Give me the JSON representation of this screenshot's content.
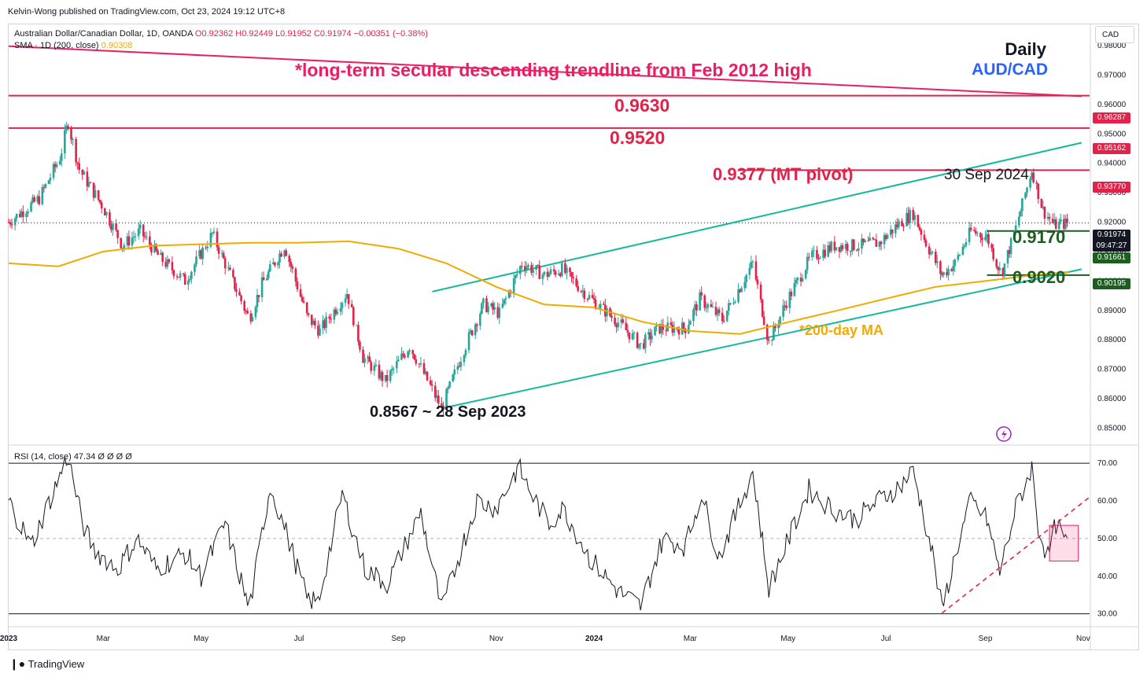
{
  "header": {
    "publisher": "Kelvin-Wong published on TradingView.com, Oct 23, 2024 19:12 UTC+8",
    "symbol": "Australian Dollar/Canadian Dollar, 1D, OANDA",
    "ohlc": "O0.92362 H0.92449 L0.91952 C0.91974 −0.00351 (−0.38%)",
    "sma_label": "SMA · 1D (200, close)",
    "sma_value": "0.90308",
    "rsi_label": "RSI (14, close)",
    "rsi_value": "47.34 Ø Ø Ø Ø"
  },
  "currency_button": "CAD",
  "titles": {
    "daily": "Daily",
    "pair": "AUD/CAD"
  },
  "annotations": {
    "trendline": "*long-term secular descending trendline from Feb 2012 high",
    "level_0963": "0.9630",
    "level_0952": "0.9520",
    "pivot": "0.9377 (MT pivot)",
    "sep_high": "30 Sep 2024",
    "level_0917": "0.9170",
    "level_0902": "0.9020",
    "low": "0.8567 ~ 28 Sep 2023",
    "ma": "*200-day MA"
  },
  "price_tags": {
    "t1": "0.96287",
    "t2": "0.95162",
    "t3": "0.93770",
    "last": "0.91974",
    "countdown": "09:47:27",
    "t5": "0.91661",
    "t6": "0.90195"
  },
  "colors": {
    "up": "#26a69a",
    "down": "#e0234a",
    "trendline": "#e91e63",
    "channel": "#14b8a0",
    "ma": "#f2a900",
    "support": "#1b5e20",
    "resistance": "#e0234a",
    "pair_title": "#2962ff"
  },
  "footer": {
    "brand": "TradingView"
  },
  "chart_data": [
    {
      "type": "candlestick",
      "title": "Australian Dollar/Canadian Dollar, 1D, OANDA",
      "x_range": [
        "2023-01-01",
        "2024-11-05"
      ],
      "ylim": [
        0.8445,
        0.9875
      ],
      "y_ticks": [
        "0.85000",
        "0.86000",
        "0.87000",
        "0.88000",
        "0.89000",
        "0.90000",
        "0.91000",
        "0.92000",
        "0.93000",
        "0.94000",
        "0.95000",
        "0.96000",
        "0.97000",
        "0.98000"
      ],
      "x_ticks": [
        {
          "label": "2023",
          "date": "2023-01-01"
        },
        {
          "label": "Mar",
          "date": "2023-03-01"
        },
        {
          "label": "May",
          "date": "2023-05-01"
        },
        {
          "label": "Jul",
          "date": "2023-07-01"
        },
        {
          "label": "Sep",
          "date": "2023-09-01"
        },
        {
          "label": "Nov",
          "date": "2023-11-01"
        },
        {
          "label": "2024",
          "date": "2024-01-01"
        },
        {
          "label": "Mar",
          "date": "2024-03-01"
        },
        {
          "label": "May",
          "date": "2024-05-01"
        },
        {
          "label": "Jul",
          "date": "2024-07-01"
        },
        {
          "label": "Sep",
          "date": "2024-09-01"
        },
        {
          "label": "Nov",
          "date": "2024-11-01"
        }
      ],
      "close_path": [
        [
          "2023-01-01",
          0.92
        ],
        [
          "2023-01-20",
          0.928
        ],
        [
          "2023-02-02",
          0.942
        ],
        [
          "2023-02-07",
          0.954
        ],
        [
          "2023-02-14",
          0.938
        ],
        [
          "2023-03-01",
          0.925
        ],
        [
          "2023-03-13",
          0.912
        ],
        [
          "2023-03-24",
          0.917
        ],
        [
          "2023-04-05",
          0.908
        ],
        [
          "2023-04-21",
          0.9
        ],
        [
          "2023-05-08",
          0.916
        ],
        [
          "2023-05-31",
          0.887
        ],
        [
          "2023-06-08",
          0.899
        ],
        [
          "2023-06-22",
          0.912
        ],
        [
          "2023-07-06",
          0.888
        ],
        [
          "2023-07-14",
          0.883
        ],
        [
          "2023-07-31",
          0.896
        ],
        [
          "2023-08-10",
          0.874
        ],
        [
          "2023-08-24",
          0.866
        ],
        [
          "2023-09-08",
          0.878
        ],
        [
          "2023-09-28",
          0.8567
        ],
        [
          "2023-10-12",
          0.877
        ],
        [
          "2023-10-24",
          0.892
        ],
        [
          "2023-11-03",
          0.889
        ],
        [
          "2023-11-17",
          0.906
        ],
        [
          "2023-12-01",
          0.902
        ],
        [
          "2023-12-12",
          0.904
        ],
        [
          "2023-12-28",
          0.895
        ],
        [
          "2024-01-18",
          0.885
        ],
        [
          "2024-01-30",
          0.878
        ],
        [
          "2024-02-10",
          0.884
        ],
        [
          "2024-02-27",
          0.884
        ],
        [
          "2024-03-07",
          0.894
        ],
        [
          "2024-03-21",
          0.887
        ],
        [
          "2024-04-09",
          0.906
        ],
        [
          "2024-04-19",
          0.879
        ],
        [
          "2024-04-30",
          0.893
        ],
        [
          "2024-05-15",
          0.908
        ],
        [
          "2024-05-30",
          0.912
        ],
        [
          "2024-06-13",
          0.912
        ],
        [
          "2024-06-27",
          0.913
        ],
        [
          "2024-07-10",
          0.92
        ],
        [
          "2024-07-18",
          0.923
        ],
        [
          "2024-07-26",
          0.913
        ],
        [
          "2024-08-05",
          0.902
        ],
        [
          "2024-08-13",
          0.906
        ],
        [
          "2024-08-23",
          0.917
        ],
        [
          "2024-09-02",
          0.915
        ],
        [
          "2024-09-11",
          0.902
        ],
        [
          "2024-09-20",
          0.918
        ],
        [
          "2024-09-30",
          0.9377
        ],
        [
          "2024-10-07",
          0.924
        ],
        [
          "2024-10-14",
          0.919
        ],
        [
          "2024-10-23",
          0.9197
        ]
      ],
      "sma_200_path": [
        [
          "2023-01-01",
          0.906
        ],
        [
          "2023-02-01",
          0.905
        ],
        [
          "2023-03-01",
          0.91
        ],
        [
          "2023-04-01",
          0.912
        ],
        [
          "2023-05-01",
          0.9125
        ],
        [
          "2023-06-01",
          0.913
        ],
        [
          "2023-07-01",
          0.913
        ],
        [
          "2023-08-01",
          0.9135
        ],
        [
          "2023-09-01",
          0.911
        ],
        [
          "2023-10-01",
          0.906
        ],
        [
          "2023-11-01",
          0.898
        ],
        [
          "2023-12-01",
          0.892
        ],
        [
          "2024-01-01",
          0.891
        ],
        [
          "2024-02-01",
          0.886
        ],
        [
          "2024-03-01",
          0.883
        ],
        [
          "2024-04-01",
          0.882
        ],
        [
          "2024-05-01",
          0.886
        ],
        [
          "2024-06-01",
          0.89
        ],
        [
          "2024-07-01",
          0.894
        ],
        [
          "2024-08-01",
          0.898
        ],
        [
          "2024-09-01",
          0.9
        ],
        [
          "2024-10-01",
          0.902
        ],
        [
          "2024-10-23",
          0.9031
        ]
      ],
      "lines": {
        "secular_trendline": [
          [
            "2023-01-01",
            0.9798
          ],
          [
            "2024-10-31",
            0.9628
          ]
        ],
        "h_0963": 0.963,
        "h_0952": 0.952,
        "pivot_0937": {
          "value": 0.9377,
          "from": "2024-04-01"
        },
        "support_0917": {
          "value": 0.917,
          "from": "2024-09-02"
        },
        "support_0902": {
          "value": 0.902,
          "from": "2024-09-02"
        },
        "channel_upper": [
          [
            "2023-09-28",
            0.898
          ],
          [
            "2024-10-31",
            0.947
          ]
        ],
        "channel_lower": [
          [
            "2023-09-28",
            0.8567
          ],
          [
            "2024-10-31",
            0.904
          ]
        ],
        "last_price": 0.91974
      }
    },
    {
      "type": "line",
      "title": "RSI (14, close)",
      "ylim": [
        27,
        74
      ],
      "y_ticks": [
        "30.00",
        "40.00",
        "50.00",
        "60.00",
        "70.00"
      ],
      "bands": [
        30,
        50,
        70
      ],
      "last": 47.34,
      "series_path": [
        [
          "2023-01-01",
          60
        ],
        [
          "2023-01-15",
          48
        ],
        [
          "2023-02-07",
          72
        ],
        [
          "2023-02-16",
          54
        ],
        [
          "2023-02-23",
          47
        ],
        [
          "2023-03-10",
          42
        ],
        [
          "2023-03-22",
          50
        ],
        [
          "2023-04-03",
          42
        ],
        [
          "2023-04-21",
          46
        ],
        [
          "2023-05-01",
          40
        ],
        [
          "2023-05-16",
          54
        ],
        [
          "2023-05-31",
          31
        ],
        [
          "2023-06-13",
          64
        ],
        [
          "2023-06-22",
          53
        ],
        [
          "2023-07-06",
          34
        ],
        [
          "2023-07-13",
          33
        ],
        [
          "2023-07-28",
          62
        ],
        [
          "2023-08-11",
          42
        ],
        [
          "2023-08-25",
          38
        ],
        [
          "2023-09-15",
          57
        ],
        [
          "2023-09-28",
          31
        ],
        [
          "2023-10-20",
          60
        ],
        [
          "2023-11-01",
          58
        ],
        [
          "2023-11-15",
          69
        ],
        [
          "2023-11-24",
          61
        ],
        [
          "2023-12-04",
          54
        ],
        [
          "2023-12-13",
          58
        ],
        [
          "2023-12-29",
          45
        ],
        [
          "2024-01-16",
          36
        ],
        [
          "2024-01-30",
          32
        ],
        [
          "2024-02-13",
          50
        ],
        [
          "2024-02-27",
          48
        ],
        [
          "2024-03-08",
          62
        ],
        [
          "2024-03-19",
          45
        ],
        [
          "2024-04-09",
          68
        ],
        [
          "2024-04-19",
          37
        ],
        [
          "2024-05-14",
          63
        ],
        [
          "2024-05-28",
          58
        ],
        [
          "2024-06-12",
          55
        ],
        [
          "2024-06-26",
          60
        ],
        [
          "2024-07-10",
          64
        ],
        [
          "2024-07-18",
          68
        ],
        [
          "2024-07-30",
          46
        ],
        [
          "2024-08-05",
          31
        ],
        [
          "2024-08-14",
          47
        ],
        [
          "2024-08-23",
          60
        ],
        [
          "2024-09-02",
          55
        ],
        [
          "2024-09-10",
          41
        ],
        [
          "2024-09-20",
          58
        ],
        [
          "2024-09-30",
          69
        ],
        [
          "2024-10-04",
          53
        ],
        [
          "2024-10-10",
          45
        ],
        [
          "2024-10-15",
          54
        ],
        [
          "2024-10-23",
          47.34
        ]
      ],
      "dashed_trendline": [
        [
          "2024-08-05",
          30.2
        ],
        [
          "2024-11-05",
          61
        ]
      ],
      "highlight_box": {
        "from": "2024-10-11",
        "to": "2024-10-29",
        "y_top": 53.5,
        "y_bottom": 44
      }
    }
  ]
}
